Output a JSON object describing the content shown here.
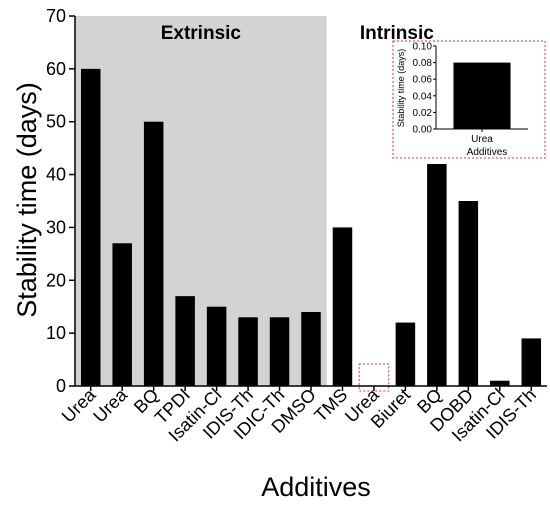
{
  "chart_data": {
    "type": "bar",
    "ylabel": "Stability time (days)",
    "xlabel": "Additives",
    "ylim": [
      0,
      70
    ],
    "yticks": [
      0,
      10,
      20,
      30,
      40,
      50,
      60,
      70
    ],
    "regions": [
      {
        "label": "Extrinsic",
        "shaded": true,
        "background": "#d3d3d3",
        "start_index": 0,
        "end_index": 7
      },
      {
        "label": "Intrinsic",
        "shaded": false,
        "start_index": 8,
        "end_index": 14
      }
    ],
    "categories": [
      "Urea",
      "Urea",
      "BQ",
      "TPDI",
      "Isatin-Cl",
      "IDIS-Th",
      "IDIC-Th",
      "DMSO",
      "TMS",
      "Urea",
      "Biuret",
      "BQ",
      "DOBD",
      "Isatin-Cl",
      "IDIS-Th"
    ],
    "values": [
      60,
      27,
      50,
      17,
      15,
      13,
      13,
      14,
      30,
      0.08,
      12,
      42,
      35,
      1,
      9
    ],
    "bar_color": "#000000",
    "highlight_index": 9,
    "highlight_color": "#e03030",
    "inset": {
      "type": "bar",
      "categories": [
        "Urea"
      ],
      "values": [
        0.08
      ],
      "ylim": [
        0,
        0.1
      ],
      "yticks": [
        "0.00",
        "0.02",
        "0.04",
        "0.06",
        "0.08",
        "0.10"
      ],
      "ylabel": "Stability time (days)",
      "xlabel": "Additives"
    }
  }
}
